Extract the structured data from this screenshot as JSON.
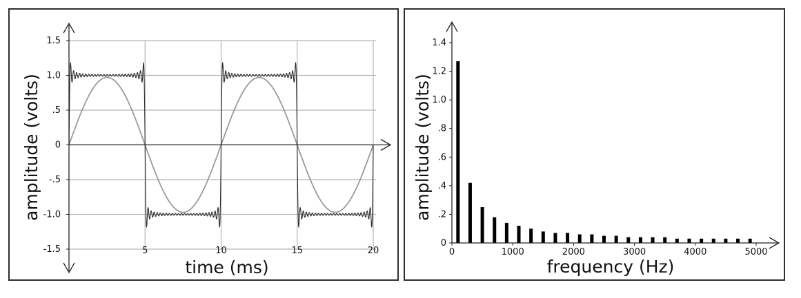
{
  "colors": {
    "axis": "#222222",
    "grid": "#b5b5b5",
    "sine": "#9a9a9a",
    "square": "#2a2a2a",
    "bars": "#000000"
  },
  "chart_data": [
    {
      "type": "line",
      "title": "",
      "xlabel": "time (ms)",
      "ylabel": "amplitude (volts)",
      "xlim": [
        0,
        20
      ],
      "ylim": [
        -1.5,
        1.5
      ],
      "grid": true,
      "x_ticks": [
        "5",
        "10",
        "15",
        "20"
      ],
      "y_ticks": [
        "1.5",
        "1.0",
        ".5",
        "0",
        "-.5",
        "-1.0",
        "-1.5"
      ],
      "series": [
        {
          "role": "fundamental sine",
          "color": "#9a9a9a",
          "period_ms": 10,
          "x": [
            0,
            1.25,
            2.5,
            3.75,
            5,
            6.25,
            7.5,
            8.75,
            10,
            11.25,
            12.5,
            13.75,
            15,
            16.25,
            17.5,
            18.75,
            20
          ],
          "y": [
            0,
            0.69,
            0.97,
            0.69,
            0,
            -0.69,
            -0.97,
            -0.69,
            0,
            0.69,
            0.97,
            0.69,
            0,
            -0.69,
            -0.97,
            -0.69,
            0
          ]
        },
        {
          "role": "square wave (Fourier synthesis)",
          "color": "#2a2a2a",
          "period_ms": 10,
          "x": [
            0,
            2.5,
            5,
            7.5,
            10,
            12.5,
            15,
            17.5,
            20
          ],
          "y": [
            0,
            1.0,
            0,
            -1.0,
            0,
            1.0,
            0,
            -1.0,
            0
          ]
        }
      ]
    },
    {
      "type": "bar",
      "title": "",
      "xlabel": "frequency (Hz)",
      "ylabel": "amplitude (volts)",
      "xlim": [
        0,
        5000
      ],
      "ylim": [
        0,
        1.4
      ],
      "grid": false,
      "x_ticks": [
        "0",
        "1000",
        "2000",
        "3000",
        "4000",
        "5000"
      ],
      "y_ticks": [
        "1.4",
        "1.2",
        "1.0",
        ".8",
        ".6",
        ".4",
        ".2",
        "0"
      ],
      "x": [
        100,
        300,
        500,
        700,
        900,
        1100,
        1300,
        1500,
        1700,
        1900,
        2100,
        2300,
        2500,
        2700,
        2900,
        3100,
        3300,
        3500,
        3700,
        3900,
        4100,
        4300,
        4500,
        4700,
        4900
      ],
      "values": [
        1.27,
        0.42,
        0.25,
        0.18,
        0.14,
        0.12,
        0.1,
        0.08,
        0.07,
        0.07,
        0.06,
        0.06,
        0.05,
        0.05,
        0.04,
        0.04,
        0.04,
        0.04,
        0.03,
        0.03,
        0.03,
        0.03,
        0.03,
        0.03,
        0.03
      ]
    }
  ]
}
